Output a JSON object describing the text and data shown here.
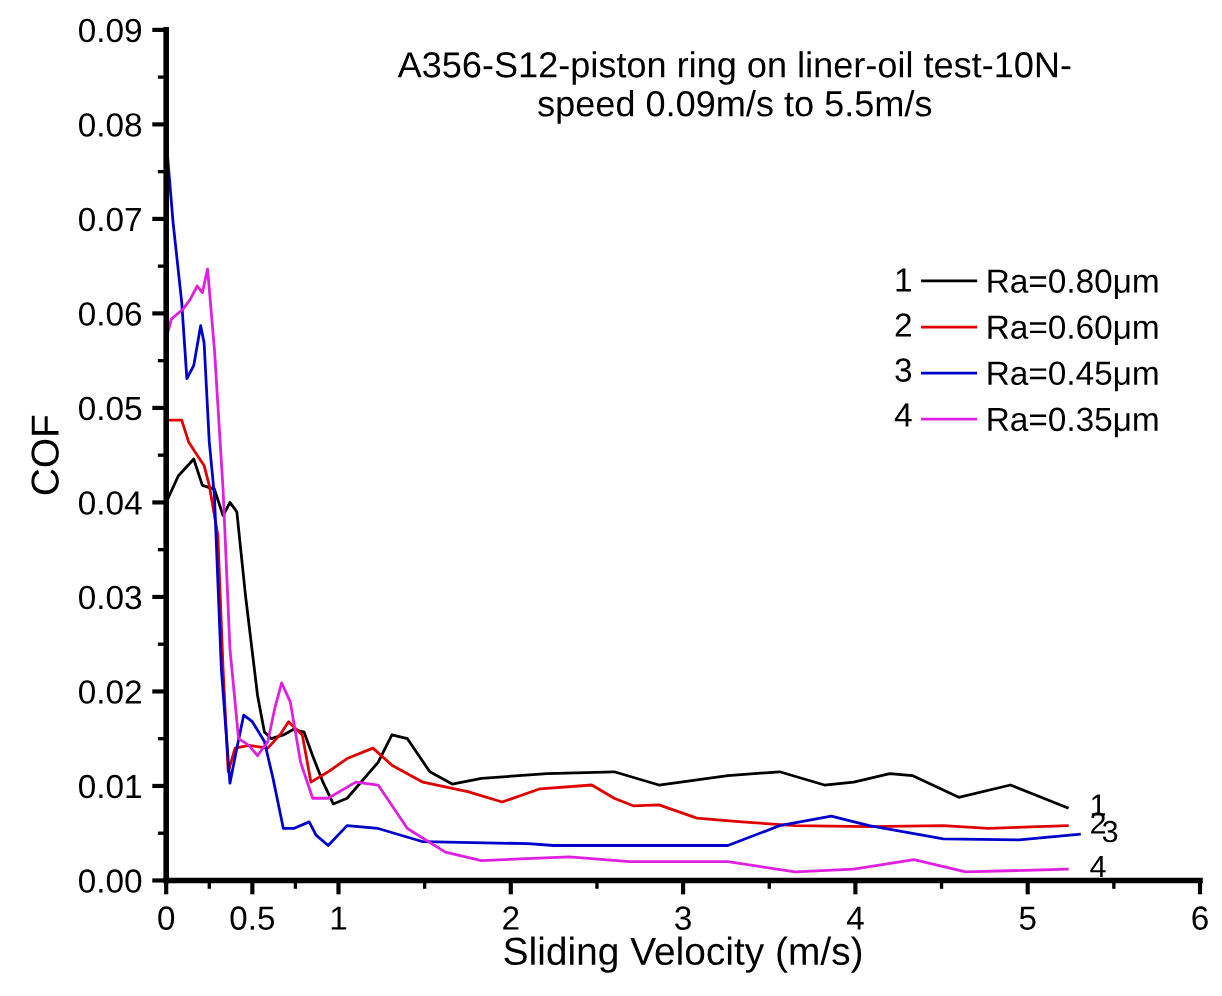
{
  "chart_data": {
    "type": "line",
    "title": "A356-S12-piston ring on liner-oil test-10N-\nspeed 0.09m/s to 5.5m/s",
    "xlabel": "Sliding Velocity (m/s)",
    "ylabel": "COF",
    "xlim": [
      0,
      6
    ],
    "ylim": [
      0,
      0.09
    ],
    "xticks": [
      0,
      {
        "value": 0.25,
        "label": null
      },
      0.5,
      {
        "value": 0.75,
        "label": null
      },
      1,
      {
        "value": 1.5,
        "label": null
      },
      2,
      {
        "value": 2.5,
        "label": null
      },
      3,
      {
        "value": 3.5,
        "label": null
      },
      4,
      {
        "value": 4.5,
        "label": null
      },
      5,
      {
        "value": 5.5,
        "label": null
      },
      6
    ],
    "yticks": [
      {
        "value": 0,
        "label": "0.00"
      },
      {
        "value": 0.005,
        "label": null
      },
      {
        "value": 0.01,
        "label": "0.01"
      },
      {
        "value": 0.015,
        "label": null
      },
      {
        "value": 0.02,
        "label": "0.02"
      },
      {
        "value": 0.025,
        "label": null
      },
      {
        "value": 0.03,
        "label": "0.03"
      },
      {
        "value": 0.035,
        "label": null
      },
      {
        "value": 0.04,
        "label": "0.04"
      },
      {
        "value": 0.045,
        "label": null
      },
      {
        "value": 0.05,
        "label": "0.05"
      },
      {
        "value": 0.055,
        "label": null
      },
      {
        "value": 0.06,
        "label": "0.06"
      },
      {
        "value": 0.065,
        "label": null
      },
      {
        "value": 0.07,
        "label": "0.07"
      },
      {
        "value": 0.075,
        "label": null
      },
      {
        "value": 0.08,
        "label": "0.08"
      },
      {
        "value": 0.085,
        "label": null
      },
      {
        "value": 0.09,
        "label": "0.09"
      }
    ],
    "grid": false,
    "legend": "right",
    "marker": "none",
    "line_style": "solid",
    "series": [
      {
        "name": "Ra=0.80μm",
        "color": "#000000",
        "x": [
          0,
          0.07,
          0.16,
          0.21,
          0.28,
          0.33,
          0.37,
          0.41,
          0.46,
          0.53,
          0.57,
          0.61,
          0.68,
          0.74,
          0.8,
          0.85,
          0.91,
          0.97,
          1.05,
          1.23,
          1.31,
          1.4,
          1.53,
          1.66,
          1.83,
          2.21,
          2.6,
          2.86,
          3.26,
          3.56,
          3.82,
          3.99,
          4.2,
          4.33,
          4.6,
          4.9,
          5.23
        ],
        "values": [
          0.04,
          0.0428,
          0.0446,
          0.0418,
          0.0414,
          0.0386,
          0.04,
          0.039,
          0.0302,
          0.0196,
          0.0157,
          0.015,
          0.0154,
          0.016,
          0.0157,
          0.0132,
          0.0104,
          0.0081,
          0.0087,
          0.0125,
          0.0154,
          0.015,
          0.0115,
          0.0102,
          0.0108,
          0.0113,
          0.0115,
          0.0101,
          0.0111,
          0.0115,
          0.0101,
          0.0104,
          0.0113,
          0.0111,
          0.0088,
          0.0101,
          0.0077
        ]
      },
      {
        "name": "Ra=0.60μm",
        "color": "#e00000",
        "x": [
          0,
          0.09,
          0.13,
          0.18,
          0.22,
          0.25,
          0.3,
          0.33,
          0.36,
          0.4,
          0.48,
          0.59,
          0.66,
          0.71,
          0.79,
          0.84,
          0.94,
          1.05,
          1.2,
          1.31,
          1.49,
          1.75,
          1.95,
          2.17,
          2.47,
          2.6,
          2.71,
          2.86,
          3.08,
          3.34,
          3.65,
          4.08,
          4.51,
          4.77,
          5.23
        ],
        "values": [
          0.0487,
          0.0487,
          0.0464,
          0.045,
          0.0439,
          0.0418,
          0.0365,
          0.0224,
          0.0115,
          0.014,
          0.0143,
          0.014,
          0.0154,
          0.0168,
          0.0154,
          0.0104,
          0.0115,
          0.0129,
          0.014,
          0.0122,
          0.0104,
          0.0094,
          0.0083,
          0.0097,
          0.0101,
          0.0087,
          0.0079,
          0.008,
          0.0066,
          0.0062,
          0.0058,
          0.0057,
          0.0058,
          0.0055,
          0.0058
        ]
      },
      {
        "name": "Ra=0.45μm",
        "color": "#0000cc",
        "x": [
          0,
          0.04,
          0.09,
          0.12,
          0.16,
          0.2,
          0.22,
          0.25,
          0.28,
          0.32,
          0.37,
          0.41,
          0.45,
          0.5,
          0.57,
          0.62,
          0.68,
          0.74,
          0.83,
          0.87,
          0.94,
          1.05,
          1.23,
          1.49,
          2.1,
          2.25,
          3.26,
          3.56,
          3.86,
          4.08,
          4.51,
          4.95,
          5.3
        ],
        "values": [
          0.0784,
          0.0696,
          0.0612,
          0.0531,
          0.0545,
          0.0587,
          0.0569,
          0.0464,
          0.0407,
          0.0224,
          0.0103,
          0.014,
          0.0175,
          0.0168,
          0.0147,
          0.0108,
          0.0055,
          0.0055,
          0.0062,
          0.0048,
          0.0037,
          0.0058,
          0.0055,
          0.0041,
          0.0039,
          0.0037,
          0.0037,
          0.0058,
          0.0068,
          0.0058,
          0.0044,
          0.0043,
          0.0049
        ]
      },
      {
        "name": "Ra=0.35μm",
        "color": "#e020e0",
        "x": [
          0,
          0.03,
          0.1,
          0.14,
          0.18,
          0.21,
          0.24,
          0.28,
          0.33,
          0.37,
          0.42,
          0.48,
          0.53,
          0.59,
          0.63,
          0.67,
          0.72,
          0.78,
          0.85,
          0.94,
          1.1,
          1.23,
          1.4,
          1.62,
          1.83,
          2.34,
          2.69,
          3.26,
          3.65,
          3.99,
          4.34,
          4.64,
          5.23
        ],
        "values": [
          0.0573,
          0.0594,
          0.0605,
          0.0615,
          0.0629,
          0.0622,
          0.0647,
          0.0562,
          0.0414,
          0.0245,
          0.015,
          0.0143,
          0.0132,
          0.0147,
          0.0182,
          0.0209,
          0.0189,
          0.0125,
          0.0087,
          0.0087,
          0.0104,
          0.0101,
          0.0055,
          0.003,
          0.0021,
          0.0025,
          0.002,
          0.002,
          0.0009,
          0.0012,
          0.0022,
          0.0009,
          0.0012
        ]
      }
    ],
    "annotations": [
      "1",
      "2",
      "3",
      "4"
    ]
  }
}
